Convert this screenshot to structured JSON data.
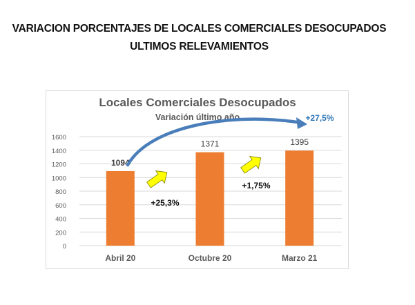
{
  "document": {
    "title_line1": "VARIACION PORCENTAJES DE LOCALES COMERCIALES DESOCUPADOS",
    "title_line2": "ULTIMOS RELEVAMIENTOS"
  },
  "chart_data": {
    "type": "bar",
    "title": "Locales Comerciales Desocupados",
    "subtitle": "Variación último año",
    "categories": [
      "Abril 20",
      "Octubre 20",
      "Marzo 21"
    ],
    "values": [
      1094,
      1371,
      1395
    ],
    "value_labels": [
      "1094",
      "1371",
      "1395"
    ],
    "xlabel": "",
    "ylabel": "",
    "ylim": [
      0,
      1600
    ],
    "yticks": [
      0,
      200,
      400,
      600,
      800,
      1000,
      1200,
      1400,
      1600
    ],
    "ytick_labels": [
      "0",
      "200",
      "400",
      "600",
      "800",
      "1000",
      "1200",
      "1400",
      "1600"
    ],
    "grid": true,
    "legend": "none",
    "bar_color": "#ED7D31",
    "annotations": [
      {
        "text": "+25,3%",
        "between": [
          "Abril 20",
          "Octubre 20"
        ],
        "arrow_color": "#FFFF00"
      },
      {
        "text": "+1,75%",
        "between": [
          "Octubre 20",
          "Marzo 21"
        ],
        "arrow_color": "#FFFF00"
      },
      {
        "text": "+27,5%",
        "between": [
          "Abril 20",
          "Marzo 21"
        ],
        "arrow_color": "#2E75B6",
        "text_color": "#2E75B6"
      }
    ]
  }
}
